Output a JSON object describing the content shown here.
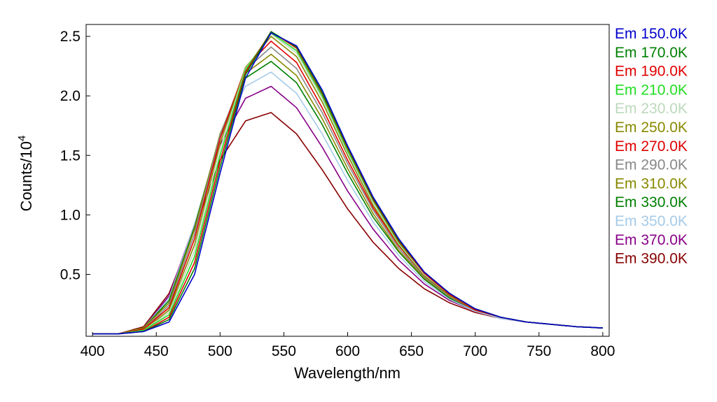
{
  "chart_data": {
    "type": "line",
    "title": "",
    "xlabel": "Wavelength/nm",
    "ylabel_base": "Counts/10",
    "ylabel_exponent": "4",
    "xlim": [
      395,
      805
    ],
    "ylim": [
      -0.02,
      2.6
    ],
    "x_ticks": [
      400,
      450,
      500,
      550,
      600,
      650,
      700,
      750,
      800
    ],
    "x_tick_labels": [
      "400",
      "450",
      "500",
      "550",
      "600",
      "650",
      "700",
      "750",
      "800"
    ],
    "y_ticks": [
      0.5,
      1.0,
      1.5,
      2.0,
      2.5
    ],
    "y_tick_labels": [
      "0.5",
      "1.0",
      "1.5",
      "2.0",
      "2.5"
    ],
    "grid": false,
    "legend_position": "right",
    "x": [
      400,
      420,
      440,
      460,
      480,
      500,
      520,
      540,
      560,
      580,
      600,
      620,
      640,
      660,
      680,
      700,
      720,
      740,
      760,
      780,
      800
    ],
    "series": [
      {
        "name": "Em 150.0K",
        "color": "#0000CC",
        "values": [
          0.0,
          0.0,
          0.02,
          0.1,
          0.5,
          1.35,
          2.15,
          2.53,
          2.42,
          2.05,
          1.58,
          1.15,
          0.8,
          0.52,
          0.34,
          0.21,
          0.14,
          0.1,
          0.08,
          0.06,
          0.05
        ]
      },
      {
        "name": "Em 170.0K",
        "color": "#008000",
        "values": [
          0.0,
          0.0,
          0.02,
          0.12,
          0.55,
          1.4,
          2.18,
          2.54,
          2.41,
          2.03,
          1.57,
          1.14,
          0.79,
          0.52,
          0.34,
          0.21,
          0.14,
          0.1,
          0.08,
          0.06,
          0.05
        ]
      },
      {
        "name": "Em 190.0K",
        "color": "#E00000",
        "values": [
          0.0,
          0.0,
          0.02,
          0.14,
          0.6,
          1.45,
          2.2,
          2.54,
          2.4,
          2.02,
          1.56,
          1.13,
          0.78,
          0.51,
          0.33,
          0.21,
          0.14,
          0.1,
          0.08,
          0.06,
          0.05
        ]
      },
      {
        "name": "Em 210.0K",
        "color": "#22DD22",
        "values": [
          0.0,
          0.0,
          0.03,
          0.16,
          0.65,
          1.5,
          2.22,
          2.53,
          2.38,
          2.0,
          1.54,
          1.12,
          0.77,
          0.51,
          0.33,
          0.21,
          0.14,
          0.1,
          0.08,
          0.06,
          0.05
        ]
      },
      {
        "name": "Em 230.0K",
        "color": "#BCD9BC",
        "values": [
          0.0,
          0.0,
          0.03,
          0.18,
          0.7,
          1.55,
          2.23,
          2.52,
          2.36,
          1.98,
          1.52,
          1.1,
          0.76,
          0.5,
          0.33,
          0.21,
          0.14,
          0.1,
          0.08,
          0.06,
          0.05
        ]
      },
      {
        "name": "Em 250.0K",
        "color": "#888800",
        "values": [
          0.0,
          0.0,
          0.03,
          0.2,
          0.75,
          1.6,
          2.24,
          2.5,
          2.33,
          1.95,
          1.5,
          1.08,
          0.75,
          0.49,
          0.32,
          0.21,
          0.14,
          0.1,
          0.08,
          0.06,
          0.05
        ]
      },
      {
        "name": "Em 270.0K",
        "color": "#E00000",
        "values": [
          0.0,
          0.0,
          0.04,
          0.22,
          0.8,
          1.64,
          2.24,
          2.46,
          2.28,
          1.9,
          1.46,
          1.06,
          0.74,
          0.49,
          0.32,
          0.2,
          0.14,
          0.1,
          0.08,
          0.06,
          0.05
        ]
      },
      {
        "name": "Em 290.0K",
        "color": "#888888",
        "values": [
          0.0,
          0.0,
          0.04,
          0.24,
          0.84,
          1.67,
          2.22,
          2.41,
          2.23,
          1.86,
          1.43,
          1.04,
          0.72,
          0.48,
          0.31,
          0.2,
          0.14,
          0.1,
          0.08,
          0.06,
          0.05
        ]
      },
      {
        "name": "Em 310.0K",
        "color": "#888800",
        "values": [
          0.0,
          0.0,
          0.05,
          0.26,
          0.88,
          1.68,
          2.19,
          2.35,
          2.17,
          1.81,
          1.39,
          1.01,
          0.7,
          0.47,
          0.31,
          0.2,
          0.14,
          0.1,
          0.08,
          0.06,
          0.05
        ]
      },
      {
        "name": "Em 330.0K",
        "color": "#008000",
        "values": [
          0.0,
          0.0,
          0.05,
          0.28,
          0.9,
          1.67,
          2.15,
          2.29,
          2.11,
          1.76,
          1.35,
          0.98,
          0.69,
          0.46,
          0.3,
          0.2,
          0.14,
          0.1,
          0.08,
          0.06,
          0.05
        ]
      },
      {
        "name": "Em 350.0K",
        "color": "#A6CBE8",
        "values": [
          0.0,
          0.0,
          0.05,
          0.3,
          0.92,
          1.65,
          2.08,
          2.2,
          2.02,
          1.68,
          1.29,
          0.94,
          0.66,
          0.44,
          0.29,
          0.19,
          0.13,
          0.1,
          0.08,
          0.06,
          0.05
        ]
      },
      {
        "name": "Em 370.0K",
        "color": "#880088",
        "values": [
          0.0,
          0.0,
          0.05,
          0.32,
          0.92,
          1.59,
          1.98,
          2.08,
          1.9,
          1.57,
          1.2,
          0.88,
          0.62,
          0.42,
          0.28,
          0.19,
          0.13,
          0.1,
          0.08,
          0.06,
          0.05
        ]
      },
      {
        "name": "Em 390.0K",
        "color": "#880000",
        "values": [
          0.0,
          0.0,
          0.06,
          0.34,
          0.88,
          1.46,
          1.79,
          1.86,
          1.68,
          1.38,
          1.05,
          0.77,
          0.55,
          0.38,
          0.26,
          0.18,
          0.13,
          0.1,
          0.08,
          0.06,
          0.05
        ]
      }
    ]
  }
}
